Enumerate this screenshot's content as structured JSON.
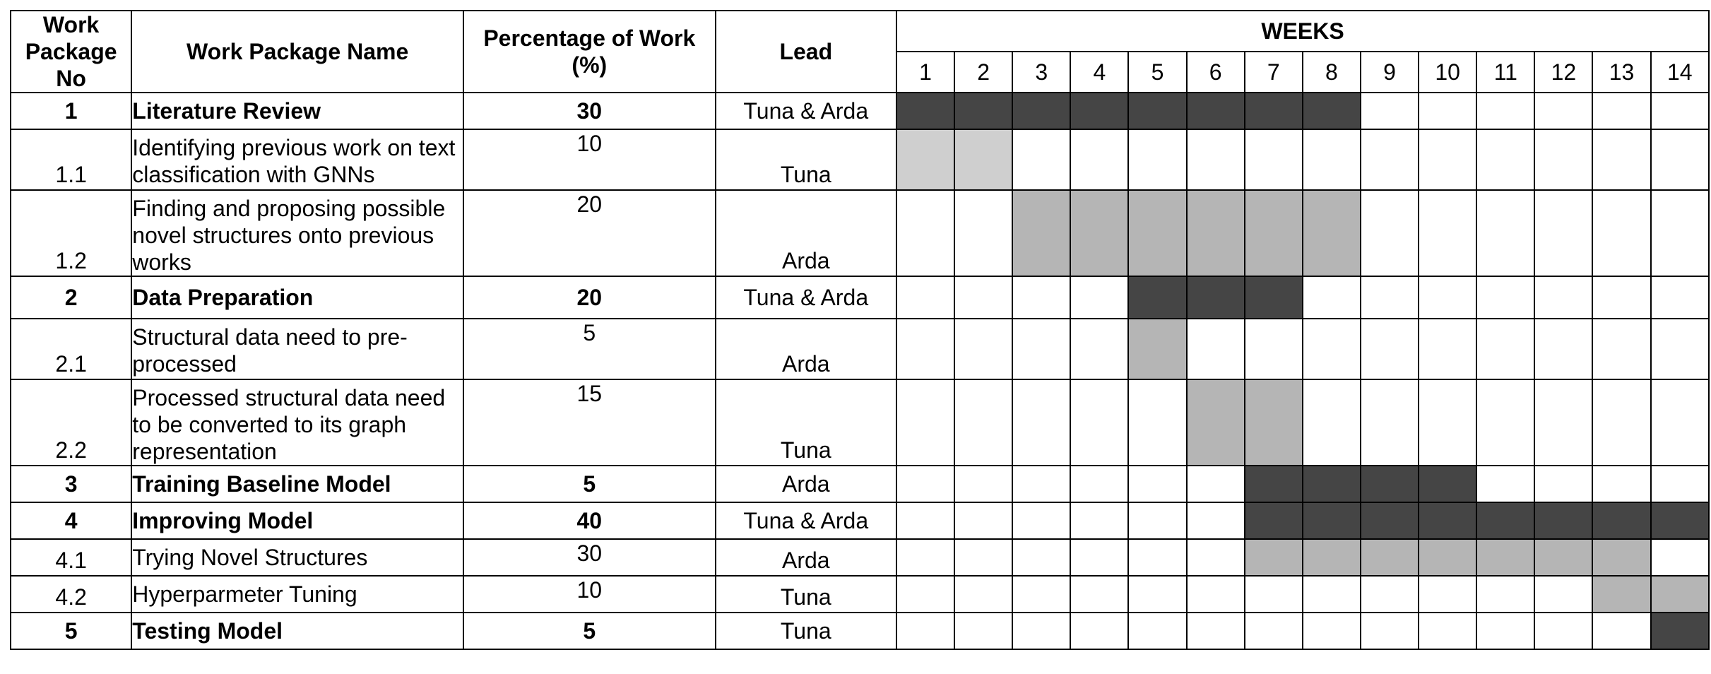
{
  "headers": {
    "no": "Work Package No",
    "name": "Work Package Name",
    "pct": "Percentage of Work (%)",
    "lead": "Lead",
    "weeks": "WEEKS"
  },
  "weeks": [
    "1",
    "2",
    "3",
    "4",
    "5",
    "6",
    "7",
    "8",
    "9",
    "10",
    "11",
    "12",
    "13",
    "14"
  ],
  "shade_colors": {
    "main": "#454545",
    "sub": "#b5b5b5",
    "sub_light": "#cfcfcf"
  },
  "rows": [
    {
      "no": "1",
      "name": "Literature Review",
      "pct": "30",
      "lead": "Tuna & Arda",
      "level": "main",
      "start": 1,
      "end": 8,
      "shade": "main"
    },
    {
      "no": "1.1",
      "name": "Identifying previous work on text classification with GNNs",
      "pct": "10",
      "lead": "Tuna",
      "level": "sub",
      "start": 1,
      "end": 2,
      "shade": "sub_light"
    },
    {
      "no": "1.2",
      "name": "Finding and proposing possible novel structures onto previous works",
      "pct": "20",
      "lead": "Arda",
      "level": "sub",
      "start": 3,
      "end": 8,
      "shade": "sub"
    },
    {
      "no": "2",
      "name": "Data Preparation",
      "pct": "20",
      "lead": "Tuna & Arda",
      "level": "main",
      "start": 5,
      "end": 7,
      "shade": "main"
    },
    {
      "no": "2.1",
      "name": "Structural data need to pre-processed",
      "pct": "5",
      "lead": "Arda",
      "level": "sub",
      "start": 5,
      "end": 5,
      "shade": "sub"
    },
    {
      "no": "2.2",
      "name": "Processed structural data need to be converted to its graph representation",
      "pct": "15",
      "lead": "Tuna",
      "level": "sub",
      "start": 6,
      "end": 7,
      "shade": "sub"
    },
    {
      "no": "3",
      "name": "Training Baseline Model",
      "pct": "5",
      "lead": "Arda",
      "level": "main",
      "start": 7,
      "end": 10,
      "shade": "main"
    },
    {
      "no": "4",
      "name": "Improving Model",
      "pct": "40",
      "lead": "Tuna & Arda",
      "level": "main",
      "start": 7,
      "end": 14,
      "shade": "main"
    },
    {
      "no": "4.1",
      "name": "Trying Novel Structures",
      "pct": "30",
      "lead": "Arda",
      "level": "sub",
      "start": 7,
      "end": 13,
      "shade": "sub"
    },
    {
      "no": "4.2",
      "name": "Hyperparmeter Tuning",
      "pct": "10",
      "lead": "Tuna",
      "level": "sub",
      "start": 13,
      "end": 14,
      "shade": "sub"
    },
    {
      "no": "5",
      "name": "Testing Model",
      "pct": "5",
      "lead": "Tuna",
      "level": "main",
      "start": 14,
      "end": 14,
      "shade": "main"
    }
  ]
}
